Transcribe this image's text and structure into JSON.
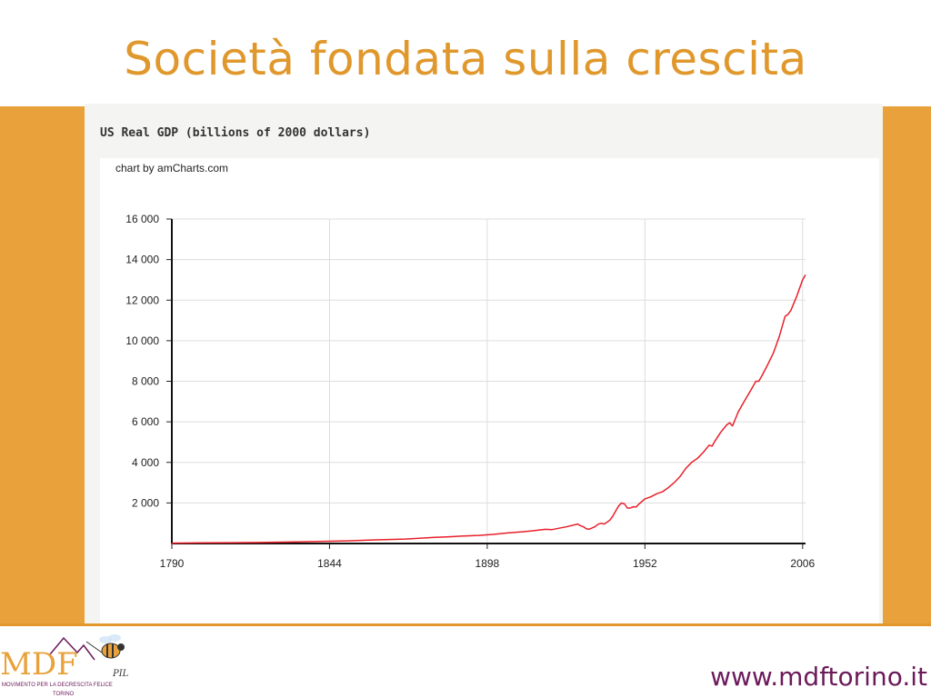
{
  "slide": {
    "title": "Società fondata sulla crescita",
    "footer_url": "www.mdftorino.it",
    "colors": {
      "accent": "#e9a23b",
      "title": "#e0982d",
      "url": "#6b1a5a",
      "series": "#e8202a"
    }
  },
  "logo": {
    "text": "MDF",
    "subtitle": "MOVIMENTO PER LA DECRESCITA FELICE",
    "city": "TORINO",
    "tag": "PIL",
    "icon": "bee-icon"
  },
  "chart_header": {
    "title": "US Real GDP (billions of 2000 dollars)",
    "credit": "chart by amCharts.com"
  },
  "chart_data": {
    "type": "line",
    "title": "US Real GDP (billions of 2000 dollars)",
    "xlabel": "",
    "ylabel": "",
    "xlim": [
      1790,
      2007
    ],
    "ylim": [
      0,
      16000
    ],
    "x_ticks": [
      "1790",
      "1844",
      "1898",
      "1952",
      "2006"
    ],
    "y_ticks": [
      "2 000",
      "4 000",
      "6 000",
      "8 000",
      "10 000",
      "12 000",
      "14 000",
      "16 000"
    ],
    "grid": true,
    "series": [
      {
        "color": "#e8202a",
        "x": [
          1790,
          1800,
          1810,
          1820,
          1830,
          1840,
          1850,
          1860,
          1870,
          1880,
          1885,
          1890,
          1895,
          1900,
          1905,
          1910,
          1913,
          1918,
          1920,
          1925,
          1929,
          1930,
          1931,
          1932,
          1933,
          1934,
          1935,
          1936,
          1937,
          1938,
          1939,
          1940,
          1941,
          1942,
          1943,
          1944,
          1945,
          1946,
          1947,
          1948,
          1949,
          1950,
          1952,
          1954,
          1956,
          1958,
          1960,
          1962,
          1964,
          1966,
          1968,
          1970,
          1972,
          1974,
          1975,
          1976,
          1978,
          1980,
          1981,
          1982,
          1984,
          1986,
          1988,
          1990,
          1991,
          1992,
          1994,
          1996,
          1998,
          2000,
          2001,
          2002,
          2004,
          2006,
          2007
        ],
        "y": [
          20,
          30,
          40,
          50,
          70,
          100,
          130,
          180,
          220,
          300,
          330,
          370,
          400,
          450,
          520,
          580,
          620,
          700,
          680,
          820,
          960,
          870,
          820,
          720,
          710,
          770,
          840,
          950,
          1000,
          960,
          1050,
          1150,
          1350,
          1600,
          1850,
          2000,
          1950,
          1750,
          1750,
          1810,
          1800,
          1950,
          2200,
          2300,
          2450,
          2550,
          2750,
          3000,
          3300,
          3700,
          4000,
          4200,
          4500,
          4850,
          4800,
          5050,
          5500,
          5850,
          5950,
          5800,
          6500,
          7000,
          7500,
          8000,
          8000,
          8250,
          8800,
          9400,
          10200,
          11200,
          11300,
          11500,
          12200,
          13000,
          13250
        ]
      }
    ]
  }
}
